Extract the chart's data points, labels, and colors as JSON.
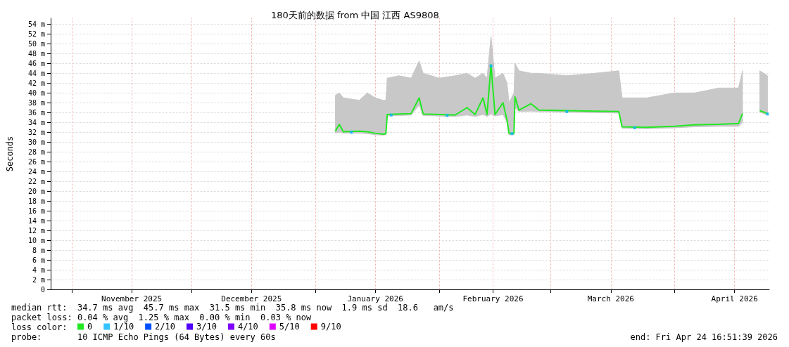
{
  "chart_data": {
    "type": "line",
    "title": "180天前的数据 from 中国 江西 AS9808",
    "ylabel": "Seconds",
    "legend_title": "loss color:",
    "legend": "bottom",
    "grid": true,
    "marker": "none",
    "xlim": [
      "2025-10-26T16:51",
      "2026-04-24T16:51"
    ],
    "xticks": [
      {
        "value": "2025-11-01",
        "label": null
      },
      {
        "value": "2025-11-16",
        "label": "November 2025"
      },
      {
        "value": "2025-12-01",
        "label": null
      },
      {
        "value": "2025-12-16",
        "label": "December 2025"
      },
      {
        "value": "2026-01-01",
        "label": null
      },
      {
        "value": "2026-01-16",
        "label": "January 2026"
      },
      {
        "value": "2026-02-01",
        "label": null
      },
      {
        "value": "2026-02-14T12:00",
        "label": "February 2026"
      },
      {
        "value": "2026-03-01",
        "label": null
      },
      {
        "value": "2026-03-16",
        "label": "March 2026"
      },
      {
        "value": "2026-04-01",
        "label": null
      },
      {
        "value": "2026-04-16",
        "label": "April 2026"
      }
    ],
    "ylim": [
      0,
      55.2
    ],
    "yticks": [
      0,
      {
        "value": 2,
        "label": "2 m"
      },
      {
        "value": 4,
        "label": "4 m"
      },
      {
        "value": 6,
        "label": "6 m"
      },
      {
        "value": 8,
        "label": "8 m"
      },
      {
        "value": 10,
        "label": "10 m"
      },
      {
        "value": 12,
        "label": "12 m"
      },
      {
        "value": 14,
        "label": "14 m"
      },
      {
        "value": 16,
        "label": "16 m"
      },
      {
        "value": 18,
        "label": "18 m"
      },
      {
        "value": 20,
        "label": "20 m"
      },
      {
        "value": 22,
        "label": "22 m"
      },
      {
        "value": 24,
        "label": "24 m"
      },
      {
        "value": 26,
        "label": "26 m"
      },
      {
        "value": 28,
        "label": "28 m"
      },
      {
        "value": 30,
        "label": "30 m"
      },
      {
        "value": 32,
        "label": "32 m"
      },
      {
        "value": 34,
        "label": "34 m"
      },
      {
        "value": 36,
        "label": "36 m"
      },
      {
        "value": 38,
        "label": "38 m"
      },
      {
        "value": 40,
        "label": "40 m"
      },
      {
        "value": 42,
        "label": "42 m"
      },
      {
        "value": 44,
        "label": "44 m"
      },
      {
        "value": 46,
        "label": "46 m"
      },
      {
        "value": 48,
        "label": "48 m"
      },
      {
        "value": 50,
        "label": "50 m"
      },
      {
        "value": 52,
        "label": "52 m"
      },
      {
        "value": 54,
        "label": "54 m"
      }
    ],
    "x": [
      "2026-01-06",
      "2026-01-07",
      "2026-01-08",
      "2026-01-12",
      "2026-01-14",
      "2026-01-16",
      "2026-01-18",
      "2026-01-18T16:00",
      "2026-01-19",
      "2026-01-22",
      "2026-01-25",
      "2026-01-27",
      "2026-01-28",
      "2026-02-01",
      "2026-02-05",
      "2026-02-08",
      "2026-02-10",
      "2026-02-12",
      "2026-02-13",
      "2026-02-14",
      "2026-02-15",
      "2026-02-17",
      "2026-02-18",
      "2026-02-18T12:00",
      "2026-02-19T18:00",
      "2026-02-20",
      "2026-02-21",
      "2026-02-24",
      "2026-02-26",
      "2026-03-05",
      "2026-03-12",
      "2026-03-18",
      "2026-03-18T20:00",
      "2026-03-25",
      "2026-04-01",
      "2026-04-06",
      "2026-04-12",
      "2026-04-17",
      "2026-04-18",
      "2026-04-19",
      "2026-04-22T08:00",
      "2026-04-24T06:00"
    ],
    "series": [
      {
        "name": "0",
        "color": "#22e822",
        "values": [
          32.2,
          33.6,
          32.1,
          32.2,
          32.1,
          31.8,
          31.6,
          31.7,
          35.6,
          35.7,
          35.8,
          39.0,
          35.7,
          35.6,
          35.5,
          37.0,
          35.6,
          39.0,
          35.6,
          45.7,
          35.6,
          38.0,
          34.5,
          31.8,
          31.8,
          39.2,
          36.5,
          37.8,
          36.5,
          36.4,
          36.3,
          36.2,
          33.1,
          33.0,
          33.2,
          33.5,
          33.6,
          33.8,
          35.8,
          null,
          36.4,
          35.8
        ],
        "lower": [
          31.8,
          32.0,
          31.8,
          31.8,
          31.7,
          31.5,
          31.4,
          31.5,
          35.3,
          35.4,
          35.5,
          37.5,
          35.4,
          35.3,
          35.2,
          35.5,
          35.2,
          35.6,
          35.2,
          35.7,
          35.3,
          35.6,
          34.0,
          31.5,
          31.5,
          37.0,
          36.2,
          36.3,
          36.2,
          36.1,
          36.0,
          35.9,
          32.8,
          32.7,
          32.9,
          33.1,
          33.2,
          33.2,
          34.0,
          null,
          36.1,
          35.5
        ],
        "upper": [
          39.5,
          40.0,
          39.0,
          38.5,
          40.0,
          39.0,
          38.5,
          38.5,
          43.0,
          43.5,
          43.0,
          46.5,
          44.0,
          43.0,
          43.5,
          44.0,
          43.0,
          44.0,
          43.0,
          51.5,
          43.0,
          44.0,
          42.0,
          38.0,
          40.0,
          46.0,
          44.5,
          44.0,
          44.0,
          43.5,
          44.0,
          44.5,
          39.0,
          39.0,
          40.0,
          40.0,
          41.0,
          41.0,
          44.5,
          null,
          44.5,
          43.5
        ]
      },
      {
        "name": "1/10",
        "color": "#00b4ff",
        "type": "scatter",
        "marker": "square",
        "x": [
          "2026-01-10",
          "2026-01-20",
          "2026-02-03",
          "2026-02-14",
          "2026-02-19T06:00",
          "2026-03-05",
          "2026-03-22",
          "2026-04-24T06:00"
        ],
        "values": [
          32.0,
          35.5,
          35.4,
          45.5,
          31.7,
          36.2,
          32.9,
          35.7
        ]
      },
      {
        "name": "2/10",
        "color": "#0050ff",
        "values": [
          null,
          null,
          null,
          null,
          null,
          null,
          null,
          null,
          null,
          null,
          null,
          null,
          null,
          null,
          null,
          null,
          null,
          null,
          null,
          null,
          null,
          null,
          null,
          null,
          null,
          null,
          null,
          null,
          null,
          null,
          null,
          null,
          null,
          null,
          null,
          null,
          null,
          null,
          null,
          null,
          null,
          null
        ]
      },
      {
        "name": "3/10",
        "color": "#5000ff",
        "values": [
          null,
          null,
          null,
          null,
          null,
          null,
          null,
          null,
          null,
          null,
          null,
          null,
          null,
          null,
          null,
          null,
          null,
          null,
          null,
          null,
          null,
          null,
          null,
          null,
          null,
          null,
          null,
          null,
          null,
          null,
          null,
          null,
          null,
          null,
          null,
          null,
          null,
          null,
          null,
          null,
          null,
          null
        ]
      },
      {
        "name": "4/10",
        "color": "#8000ff",
        "values": [
          null,
          null,
          null,
          null,
          null,
          null,
          null,
          null,
          null,
          null,
          null,
          null,
          null,
          null,
          null,
          null,
          null,
          null,
          null,
          null,
          null,
          null,
          null,
          null,
          null,
          null,
          null,
          null,
          null,
          null,
          null,
          null,
          null,
          null,
          null,
          null,
          null,
          null,
          null,
          null,
          null,
          null
        ]
      },
      {
        "name": "5/10",
        "color": "#e000ff",
        "values": [
          null,
          null,
          null,
          null,
          null,
          null,
          null,
          null,
          null,
          null,
          null,
          null,
          null,
          null,
          null,
          null,
          null,
          null,
          null,
          null,
          null,
          null,
          null,
          null,
          null,
          null,
          null,
          null,
          null,
          null,
          null,
          null,
          null,
          null,
          null,
          null,
          null,
          null,
          null,
          null,
          null,
          null
        ]
      },
      {
        "name": "9/10",
        "color": "#ff0000",
        "values": [
          null,
          null,
          null,
          null,
          null,
          null,
          null,
          null,
          null,
          null,
          null,
          null,
          null,
          null,
          null,
          null,
          null,
          null,
          null,
          null,
          null,
          null,
          null,
          null,
          null,
          null,
          null,
          null,
          null,
          null,
          null,
          null,
          null,
          null,
          null,
          null,
          null,
          null,
          null,
          null,
          null,
          null
        ]
      }
    ],
    "annotations": [
      "median rtt:  34.7 ms avg  45.7 ms max  31.5 ms min  35.8 ms now  1.9 ms sd  18.6   am/s",
      "packet loss: 0.04 % avg  1.25 % max  0.00 % min  0.03 % now",
      "probe:       10 ICMP Echo Pings (64 Bytes) every 60s",
      "end: Fri Apr 24 16:51:39 2026"
    ]
  }
}
